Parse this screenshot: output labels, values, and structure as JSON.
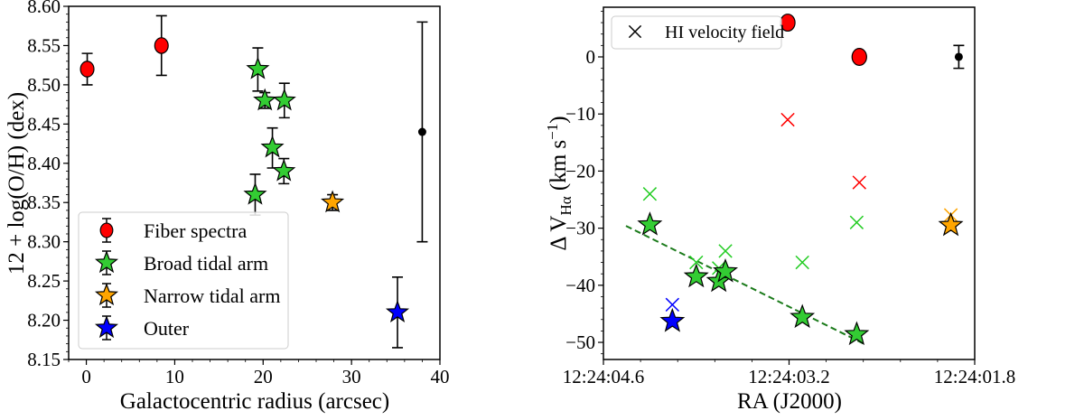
{
  "chart_data": [
    {
      "type": "scatter",
      "xlabel": "Galactocentric radius (arcsec)",
      "ylabel": "12 + log(O/H) (dex)",
      "xlim": [
        -2,
        40
      ],
      "ylim": [
        8.15,
        8.6
      ],
      "xticks": [
        0,
        10,
        20,
        30,
        40
      ],
      "yticks": [
        8.15,
        8.2,
        8.25,
        8.3,
        8.35,
        8.4,
        8.45,
        8.5,
        8.55,
        8.6
      ],
      "ytick_labels": [
        "8.15",
        "8.20",
        "8.25",
        "8.30",
        "8.35",
        "8.40",
        "8.45",
        "8.50",
        "8.55",
        "8.60"
      ],
      "grid": false,
      "legend_position": "lower-left",
      "series": [
        {
          "name": "Fiber spectra",
          "marker": "circle",
          "color": "#ff0000",
          "points": [
            {
              "x": 0.1,
              "y": 8.52,
              "ylo": 8.5,
              "yhi": 8.54
            },
            {
              "x": 8.5,
              "y": 8.55,
              "ylo": 8.512,
              "yhi": 8.588
            }
          ]
        },
        {
          "name": "Broad tidal arm",
          "marker": "star",
          "color": "#33cc33",
          "points": [
            {
              "x": 19.4,
              "y": 8.52,
              "ylo": 8.492,
              "yhi": 8.547
            },
            {
              "x": 20.2,
              "y": 8.48,
              "ylo": 8.47,
              "yhi": 8.49
            },
            {
              "x": 22.4,
              "y": 8.48,
              "ylo": 8.458,
              "yhi": 8.502
            },
            {
              "x": 21.05,
              "y": 8.42,
              "ylo": 8.394,
              "yhi": 8.445
            },
            {
              "x": 22.35,
              "y": 8.39,
              "ylo": 8.374,
              "yhi": 8.406
            },
            {
              "x": 19.1,
              "y": 8.36,
              "ylo": 8.334,
              "yhi": 8.386
            }
          ]
        },
        {
          "name": "Narrow tidal arm",
          "marker": "star",
          "color": "#ffa500",
          "points": [
            {
              "x": 27.85,
              "y": 8.35,
              "ylo": 8.34,
              "yhi": 8.36
            }
          ]
        },
        {
          "name": "Outer",
          "marker": "star",
          "color": "#0000ff",
          "points": [
            {
              "x": 35.2,
              "y": 8.21,
              "ylo": 8.165,
              "yhi": 8.255
            }
          ]
        },
        {
          "marker": "dot",
          "color": "#000000",
          "points": [
            {
              "x": 38.0,
              "y": 8.44,
              "ylo": 8.3,
              "yhi": 8.58
            }
          ]
        }
      ]
    },
    {
      "type": "scatter",
      "xlabel": "RA (J2000)",
      "ylabel": "Δ V",
      "ylabel_sub": "Hα",
      "ylabel_unit": " (km s",
      "ylabel_sup": "−1",
      "ylabel_close": ")",
      "x_units": "RA seconds after 12:24:00",
      "x_inverted": true,
      "xlim": [
        4.6,
        1.8
      ],
      "ylim": [
        -53,
        8.7
      ],
      "xticks": [
        4.6,
        3.2,
        1.8
      ],
      "xtick_labels": [
        "12:24:04.6",
        "12:24:03.2",
        "12:24:01.8"
      ],
      "yticks": [
        -50,
        -40,
        -30,
        -20,
        -10,
        0
      ],
      "ytick_labels": [
        "−50",
        "−40",
        "−30",
        "−20",
        "−10",
        "0"
      ],
      "grid": false,
      "legend_position": "upper-left",
      "legend": [
        {
          "name": "HI velocity field",
          "marker": "x",
          "color": "#000000"
        }
      ],
      "series": [
        {
          "marker": "circle",
          "color": "#ff0000",
          "points": [
            {
              "x": 3.21,
              "y": 6
            },
            {
              "x": 2.67,
              "y": 0
            }
          ]
        },
        {
          "marker": "dot",
          "color": "#000000",
          "points": [
            {
              "x": 1.92,
              "y": 0,
              "ylo": -2,
              "yhi": 2
            }
          ]
        },
        {
          "marker": "x",
          "color": "#ff0000",
          "points": [
            {
              "x": 3.21,
              "y": -11
            },
            {
              "x": 2.67,
              "y": -22
            }
          ]
        },
        {
          "marker": "x",
          "color": "#22cc22",
          "points": [
            {
              "x": 4.25,
              "y": -24
            },
            {
              "x": 3.9,
              "y": -36
            },
            {
              "x": 3.73,
              "y": -37
            },
            {
              "x": 3.68,
              "y": -34
            },
            {
              "x": 3.1,
              "y": -36
            },
            {
              "x": 2.69,
              "y": -29
            }
          ]
        },
        {
          "marker": "x",
          "color": "#ffa500",
          "points": [
            {
              "x": 1.98,
              "y": -27.7
            }
          ]
        },
        {
          "marker": "x",
          "color": "#0000ff",
          "points": [
            {
              "x": 4.08,
              "y": -43.4
            }
          ]
        },
        {
          "marker": "star",
          "color": "#33cc33",
          "points": [
            {
              "x": 4.25,
              "y": -29.4
            },
            {
              "x": 3.9,
              "y": -38.5
            },
            {
              "x": 3.73,
              "y": -39.3
            },
            {
              "x": 3.68,
              "y": -37.6
            },
            {
              "x": 3.1,
              "y": -45.6
            },
            {
              "x": 2.69,
              "y": -48.6
            }
          ]
        },
        {
          "marker": "star",
          "color": "#ffa500",
          "points": [
            {
              "x": 1.98,
              "y": -29.5
            }
          ]
        },
        {
          "marker": "star",
          "color": "#0000ff",
          "points": [
            {
              "x": 4.08,
              "y": -46.3
            }
          ]
        }
      ],
      "fit_line": {
        "style": "dashed",
        "color": "#1a7a1a",
        "x": [
          4.43,
          2.64
        ],
        "y": [
          -29.6,
          -50.2
        ]
      }
    }
  ]
}
